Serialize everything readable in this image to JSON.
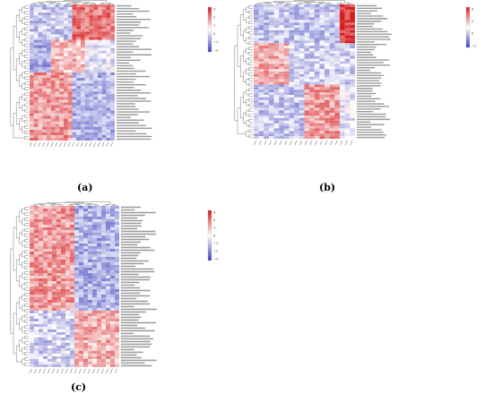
{
  "colors": {
    "low": "#3b3fbd",
    "mid": "#ffffff",
    "high": "#d7191c",
    "dendrogram": "#444444"
  },
  "chart_data": [
    {
      "type": "heatmap",
      "panel_label": "(a)",
      "n_rows": 50,
      "n_cols": 20,
      "zlim": [
        -3,
        3
      ],
      "colorbar_ticks": [
        "3",
        "2",
        "1",
        "0",
        "−1",
        "−2"
      ],
      "pattern": [
        {
          "rows": [
            0,
            12
          ],
          "cols": [
            10,
            19
          ],
          "level": 1.8
        },
        {
          "rows": [
            0,
            12
          ],
          "cols": [
            0,
            9
          ],
          "level": -0.8
        },
        {
          "rows": [
            13,
            24
          ],
          "cols": [
            0,
            4
          ],
          "level": -1.4
        },
        {
          "rows": [
            13,
            24
          ],
          "cols": [
            5,
            12
          ],
          "level": 0.9
        },
        {
          "rows": [
            13,
            24
          ],
          "cols": [
            13,
            19
          ],
          "level": -0.4
        },
        {
          "rows": [
            25,
            49
          ],
          "cols": [
            0,
            9
          ],
          "level": 1.3
        },
        {
          "rows": [
            25,
            49
          ],
          "cols": [
            10,
            19
          ],
          "level": -1.2
        }
      ]
    },
    {
      "type": "heatmap",
      "panel_label": "(b)",
      "n_rows": 52,
      "n_cols": 20,
      "zlim": [
        -3,
        3
      ],
      "colorbar_ticks": [
        "4",
        "2",
        "0",
        "−2"
      ],
      "pattern": [
        {
          "rows": [
            0,
            14
          ],
          "cols": [
            17,
            19
          ],
          "level": 2.7
        },
        {
          "rows": [
            0,
            14
          ],
          "cols": [
            0,
            16
          ],
          "level": -0.9
        },
        {
          "rows": [
            15,
            30
          ],
          "cols": [
            0,
            6
          ],
          "level": 1.1
        },
        {
          "rows": [
            15,
            30
          ],
          "cols": [
            7,
            19
          ],
          "level": -0.7
        },
        {
          "rows": [
            31,
            51
          ],
          "cols": [
            10,
            16
          ],
          "level": 1.3
        },
        {
          "rows": [
            31,
            51
          ],
          "cols": [
            0,
            9
          ],
          "level": -0.9
        },
        {
          "rows": [
            31,
            51
          ],
          "cols": [
            17,
            19
          ],
          "level": -0.3
        }
      ]
    },
    {
      "type": "heatmap",
      "panel_label": "(c)",
      "n_rows": 60,
      "n_cols": 20,
      "zlim": [
        -3,
        3
      ],
      "colorbar_ticks": [
        "3",
        "2",
        "1",
        "0",
        "−1",
        "−2",
        "−3"
      ],
      "pattern": [
        {
          "rows": [
            0,
            38
          ],
          "cols": [
            0,
            9
          ],
          "level": 1.3
        },
        {
          "rows": [
            0,
            38
          ],
          "cols": [
            10,
            19
          ],
          "level": -1.2
        },
        {
          "rows": [
            39,
            59
          ],
          "cols": [
            0,
            9
          ],
          "level": -0.7
        },
        {
          "rows": [
            39,
            59
          ],
          "cols": [
            10,
            19
          ],
          "level": 1.0
        }
      ]
    }
  ]
}
